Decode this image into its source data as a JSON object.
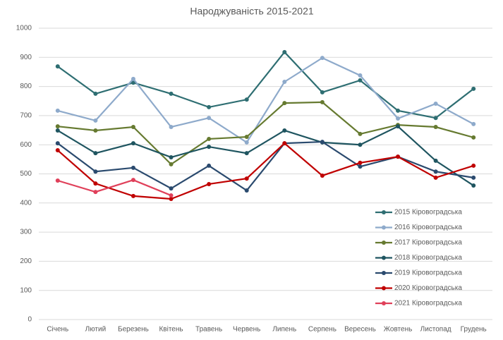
{
  "chart_data": {
    "type": "line",
    "title": "Народжуваність 2015-2021",
    "categories": [
      "Січень",
      "Лютий",
      "Березень",
      "Квітень",
      "Травень",
      "Червень",
      "Липень",
      "Серпень",
      "Вересень",
      "Жовтень",
      "Листопад",
      "Грудень"
    ],
    "series": [
      {
        "name": "2015 Кіровоградська",
        "color": "#2e6e72",
        "values": [
          869,
          775,
          813,
          775,
          729,
          755,
          918,
          780,
          821,
          717,
          692,
          792
        ]
      },
      {
        "name": "2016 Кіровоградська",
        "color": "#8eaacb",
        "values": [
          717,
          683,
          826,
          661,
          692,
          608,
          816,
          898,
          838,
          690,
          741,
          671
        ]
      },
      {
        "name": "2017 Кіровоградська",
        "color": "#667a30",
        "values": [
          663,
          649,
          661,
          533,
          620,
          627,
          743,
          746,
          637,
          668,
          661,
          625
        ]
      },
      {
        "name": "2018 Кіровоградська",
        "color": "#1f5560",
        "values": [
          649,
          571,
          605,
          557,
          593,
          571,
          649,
          608,
          600,
          663,
          545,
          460
        ]
      },
      {
        "name": "2019 Кіровоградська",
        "color": "#2a4a6e",
        "values": [
          605,
          508,
          521,
          450,
          528,
          443,
          605,
          610,
          525,
          559,
          508,
          487
        ]
      },
      {
        "name": "2020 Кіровоградська",
        "color": "#c00000",
        "values": [
          581,
          467,
          424,
          414,
          465,
          484,
          605,
          494,
          538,
          559,
          487,
          528
        ]
      },
      {
        "name": "2021 Кіровоградська",
        "color": "#e0405a",
        "values": [
          477,
          438,
          479,
          426,
          null,
          null,
          null,
          null,
          null,
          null,
          null,
          null
        ]
      }
    ],
    "ylim": [
      0,
      1000
    ],
    "yticks": [
      0,
      100,
      200,
      300,
      400,
      500,
      600,
      700,
      800,
      900,
      1000
    ],
    "grid": true,
    "legend": "right"
  }
}
